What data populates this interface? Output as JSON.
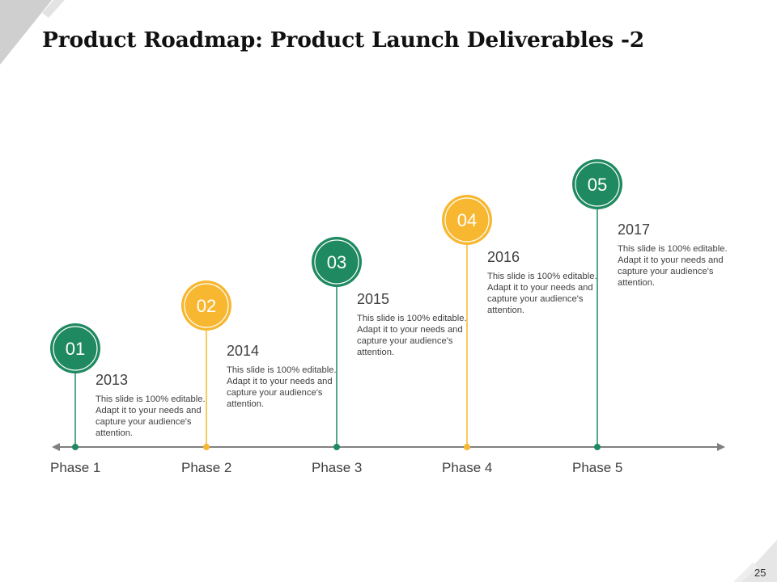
{
  "slide": {
    "title": "Product Roadmap: Product Launch Deliverables -2",
    "page_number": "25"
  },
  "colors": {
    "green": "#1f8a61",
    "yellow": "#f7b731",
    "axis": "#808080",
    "text": "#404040",
    "corner": "#d5d5d5"
  },
  "milestones": [
    {
      "number": "01",
      "year": "2013",
      "description": "This slide is 100% editable. Adapt it to your needs and capture your audience's attention.",
      "phase": "Phase 1",
      "color": "green"
    },
    {
      "number": "02",
      "year": "2014",
      "description": "This slide is 100% editable. Adapt it to your needs and capture your audience's attention.",
      "phase": "Phase 2",
      "color": "yellow"
    },
    {
      "number": "03",
      "year": "2015",
      "description": "This slide is 100% editable. Adapt it to your needs and capture your audience's attention.",
      "phase": "Phase 3",
      "color": "green"
    },
    {
      "number": "04",
      "year": "2016",
      "description": "This slide is 100% editable. Adapt it to your needs and capture your audience's attention.",
      "phase": "Phase 4",
      "color": "yellow"
    },
    {
      "number": "05",
      "year": "2017",
      "description": "This slide is 100% editable. Adapt it to your needs and capture your audience's attention.",
      "phase": "Phase 5",
      "color": "green"
    }
  ]
}
